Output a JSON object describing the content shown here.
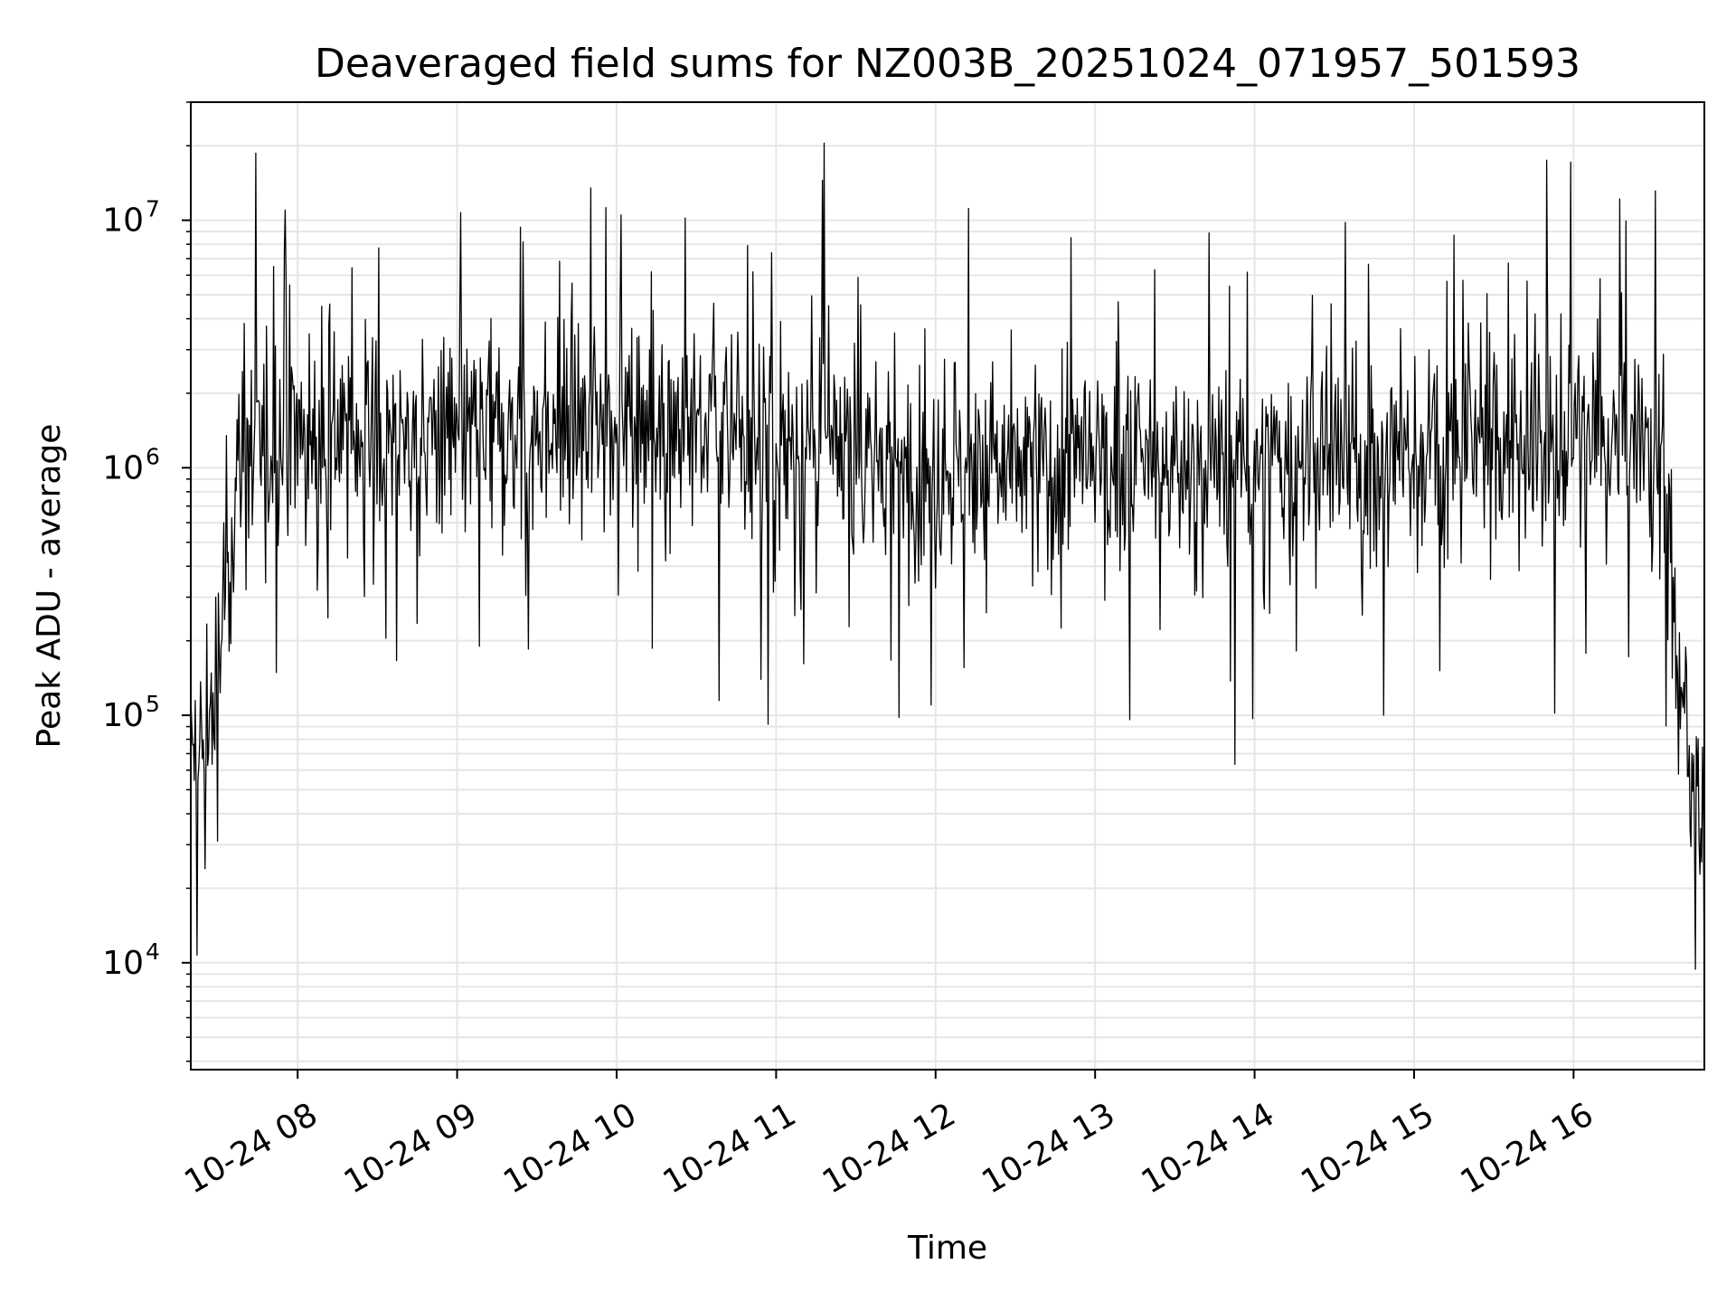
{
  "chart_data": {
    "type": "line",
    "title": "Deaveraged field sums for NZ003B_20251024_071957_501593",
    "xlabel": "Time",
    "ylabel": "Peak ADU - average",
    "yscale": "log",
    "ylim": [
      3700,
      30000000
    ],
    "xlim_hours": [
      7.33,
      16.82
    ],
    "grid": true,
    "line_color": "#000000",
    "grid_color": "#e6e6e6",
    "x_ticks": [
      {
        "hour": 8,
        "label": "10-24 08"
      },
      {
        "hour": 9,
        "label": "10-24 09"
      },
      {
        "hour": 10,
        "label": "10-24 10"
      },
      {
        "hour": 11,
        "label": "10-24 11"
      },
      {
        "hour": 12,
        "label": "10-24 12"
      },
      {
        "hour": 13,
        "label": "10-24 13"
      },
      {
        "hour": 14,
        "label": "10-24 14"
      },
      {
        "hour": 15,
        "label": "10-24 15"
      },
      {
        "hour": 16,
        "label": "10-24 16"
      }
    ],
    "y_ticks": [
      {
        "value": 10000,
        "base": "10",
        "exp": "4"
      },
      {
        "value": 100000,
        "base": "10",
        "exp": "5"
      },
      {
        "value": 1000000,
        "base": "10",
        "exp": "6"
      },
      {
        "value": 10000000,
        "base": "10",
        "exp": "7"
      }
    ],
    "series": [
      {
        "name": "deaveraged field sums",
        "description": "noisy time series; baseline ~1e6 between 07:30 and 16:35, ramping up from ~5e4 at start, dropping to ~1e4 at end",
        "envelope": {
          "x_hours": [
            7.33,
            7.4,
            7.5,
            7.55,
            7.65,
            8.0,
            9.0,
            9.5,
            10.0,
            10.5,
            11.0,
            11.5,
            12.0,
            13.0,
            14.0,
            15.0,
            15.5,
            16.0,
            16.4,
            16.55,
            16.62,
            16.7,
            16.78,
            16.82
          ],
          "y_values": [
            60000,
            70000,
            150000,
            400000,
            1100000,
            1400000,
            1300000,
            1400000,
            1700000,
            1500000,
            1200000,
            1100000,
            1000000,
            1000000,
            1000000,
            1100000,
            1300000,
            1300000,
            1200000,
            1100000,
            400000,
            65000,
            40000,
            9000
          ]
        },
        "noise_sigma_log10": 0.22,
        "spikes": [
          {
            "hour": 7.92,
            "value": 11000000
          },
          {
            "hour": 7.85,
            "value": 6500000
          },
          {
            "hour": 9.84,
            "value": 13500000
          },
          {
            "hour": 10.03,
            "value": 10500000
          },
          {
            "hour": 10.43,
            "value": 10200000
          },
          {
            "hour": 11.3,
            "value": 20500000
          },
          {
            "hour": 11.29,
            "value": 14500000
          },
          {
            "hour": 12.85,
            "value": 8500000
          },
          {
            "hour": 14.57,
            "value": 9800000
          },
          {
            "hour": 15.83,
            "value": 17500000
          },
          {
            "hour": 16.29,
            "value": 12200000
          },
          {
            "hour": 15.25,
            "value": 8700000
          },
          {
            "hour": 10.95,
            "value": 92000
          },
          {
            "hour": 11.77,
            "value": 98000
          },
          {
            "hour": 11.97,
            "value": 110000
          },
          {
            "hour": 13.99,
            "value": 97000
          },
          {
            "hour": 14.81,
            "value": 100000
          },
          {
            "hour": 15.88,
            "value": 102000
          },
          {
            "hour": 9.14,
            "value": 190000
          },
          {
            "hour": 8.75,
            "value": 235000
          },
          {
            "hour": 7.42,
            "value": 24000
          },
          {
            "hour": 7.5,
            "value": 31000
          }
        ]
      }
    ]
  }
}
